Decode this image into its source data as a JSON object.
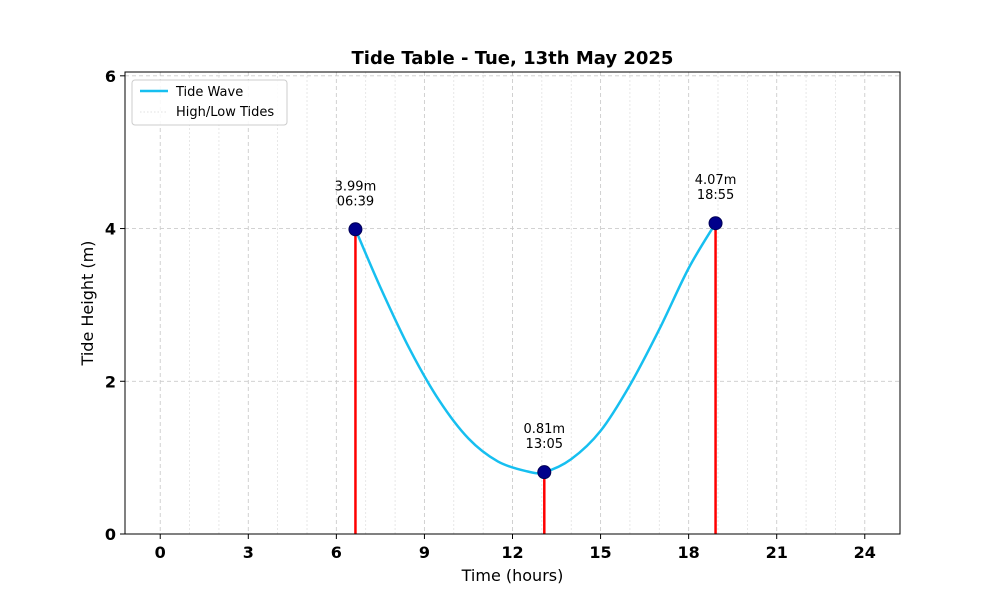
{
  "chart_data": {
    "type": "line",
    "title": "Tide Table - Tue, 13th May 2025",
    "xlabel": "Time (hours)",
    "ylabel": "Tide Height (m)",
    "xlim": [
      -1.2,
      25.2
    ],
    "ylim": [
      0,
      6.05
    ],
    "x_ticks": [
      0,
      3,
      6,
      9,
      12,
      15,
      18,
      21,
      24
    ],
    "x_tick_labels": [
      "0",
      "3",
      "6",
      "9",
      "12",
      "15",
      "18",
      "21",
      "24"
    ],
    "y_ticks": [
      0,
      2,
      4,
      6
    ],
    "y_tick_labels": [
      "0",
      "2",
      "4",
      "6"
    ],
    "grid": true,
    "minor_x_grid_step": 1,
    "legend_position": "top-left",
    "series": [
      {
        "name": "Tide Wave",
        "color": "#16bff0",
        "style": "solid",
        "x": [
          6.65,
          7.5,
          8.5,
          9.5,
          10.5,
          11.5,
          12.5,
          13.083,
          14,
          15,
          16,
          17,
          18,
          18.917
        ],
        "y": [
          3.99,
          3.23,
          2.42,
          1.75,
          1.25,
          0.95,
          0.82,
          0.81,
          0.98,
          1.35,
          1.95,
          2.68,
          3.48,
          4.07
        ]
      },
      {
        "name": "High/Low Tides",
        "color": "#e0e0e0",
        "style": "dotted",
        "marker_color": "#00008b",
        "stem_color": "#ff0000",
        "points": [
          {
            "x": 6.65,
            "y": 3.99,
            "height_label": "3.99m",
            "time_label": "06:39"
          },
          {
            "x": 13.083,
            "y": 0.81,
            "height_label": "0.81m",
            "time_label": "13:05"
          },
          {
            "x": 18.917,
            "y": 4.07,
            "height_label": "4.07m",
            "time_label": "18:55"
          }
        ]
      }
    ]
  }
}
